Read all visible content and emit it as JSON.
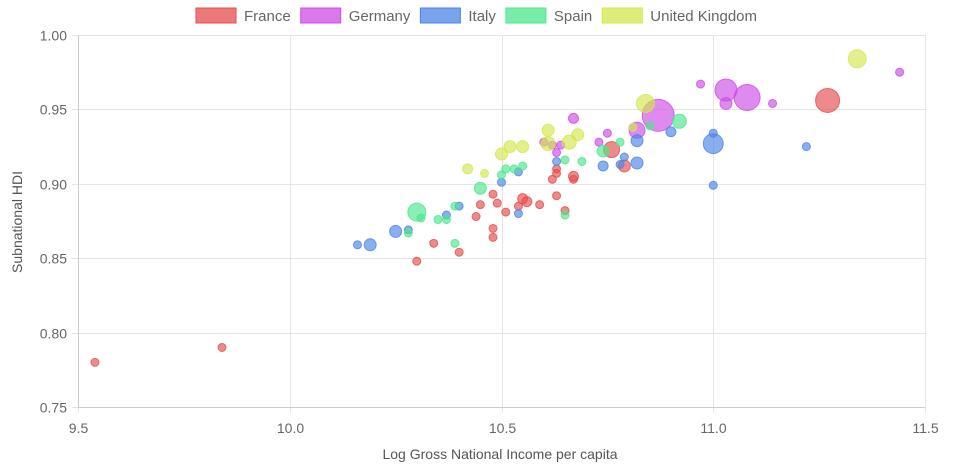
{
  "chart_data": {
    "type": "scatter",
    "variant": "bubble",
    "title": "",
    "xlabel": "Log Gross National Income per capita",
    "ylabel": "Subnational HDI",
    "xlim": [
      9.5,
      11.5
    ],
    "ylim": [
      0.75,
      1.0
    ],
    "xticks": [
      "9.5",
      "10.0",
      "10.5",
      "11.0",
      "11.5"
    ],
    "yticks": [
      "0.75",
      "0.80",
      "0.85",
      "0.90",
      "0.95",
      "1.00"
    ],
    "grid": true,
    "legend_position": "top",
    "series": [
      {
        "name": "France",
        "color": "#e64c4c",
        "points": [
          {
            "x": 9.54,
            "y": 0.78,
            "r": 4
          },
          {
            "x": 9.84,
            "y": 0.79,
            "r": 4
          },
          {
            "x": 10.3,
            "y": 0.848,
            "r": 4
          },
          {
            "x": 10.34,
            "y": 0.86,
            "r": 4
          },
          {
            "x": 10.4,
            "y": 0.854,
            "r": 4
          },
          {
            "x": 10.44,
            "y": 0.878,
            "r": 4
          },
          {
            "x": 10.45,
            "y": 0.886,
            "r": 4
          },
          {
            "x": 10.48,
            "y": 0.87,
            "r": 4
          },
          {
            "x": 10.48,
            "y": 0.864,
            "r": 4
          },
          {
            "x": 10.48,
            "y": 0.893,
            "r": 4
          },
          {
            "x": 10.49,
            "y": 0.887,
            "r": 4
          },
          {
            "x": 10.51,
            "y": 0.881,
            "r": 4
          },
          {
            "x": 10.54,
            "y": 0.885,
            "r": 4
          },
          {
            "x": 10.55,
            "y": 0.89,
            "r": 5
          },
          {
            "x": 10.56,
            "y": 0.888,
            "r": 5
          },
          {
            "x": 10.59,
            "y": 0.886,
            "r": 4
          },
          {
            "x": 10.62,
            "y": 0.903,
            "r": 4
          },
          {
            "x": 10.63,
            "y": 0.892,
            "r": 4
          },
          {
            "x": 10.63,
            "y": 0.91,
            "r": 4
          },
          {
            "x": 10.63,
            "y": 0.907,
            "r": 4
          },
          {
            "x": 10.65,
            "y": 0.882,
            "r": 4
          },
          {
            "x": 10.67,
            "y": 0.905,
            "r": 5
          },
          {
            "x": 10.67,
            "y": 0.903,
            "r": 4
          },
          {
            "x": 10.76,
            "y": 0.923,
            "r": 8
          },
          {
            "x": 10.79,
            "y": 0.912,
            "r": 6
          },
          {
            "x": 11.27,
            "y": 0.956,
            "r": 12
          }
        ]
      },
      {
        "name": "Germany",
        "color": "#cc4ce6",
        "points": [
          {
            "x": 10.6,
            "y": 0.928,
            "r": 4
          },
          {
            "x": 10.62,
            "y": 0.926,
            "r": 4
          },
          {
            "x": 10.63,
            "y": 0.921,
            "r": 4
          },
          {
            "x": 10.64,
            "y": 0.926,
            "r": 4
          },
          {
            "x": 10.67,
            "y": 0.944,
            "r": 5
          },
          {
            "x": 10.73,
            "y": 0.928,
            "r": 4
          },
          {
            "x": 10.75,
            "y": 0.934,
            "r": 4
          },
          {
            "x": 10.82,
            "y": 0.936,
            "r": 8
          },
          {
            "x": 10.87,
            "y": 0.946,
            "r": 16
          },
          {
            "x": 10.97,
            "y": 0.967,
            "r": 4
          },
          {
            "x": 11.03,
            "y": 0.954,
            "r": 6
          },
          {
            "x": 11.03,
            "y": 0.963,
            "r": 11
          },
          {
            "x": 11.08,
            "y": 0.958,
            "r": 13
          },
          {
            "x": 11.14,
            "y": 0.954,
            "r": 4
          },
          {
            "x": 11.44,
            "y": 0.975,
            "r": 4
          }
        ]
      },
      {
        "name": "Italy",
        "color": "#4c84e6",
        "points": [
          {
            "x": 10.16,
            "y": 0.859,
            "r": 4
          },
          {
            "x": 10.19,
            "y": 0.859,
            "r": 6
          },
          {
            "x": 10.25,
            "y": 0.868,
            "r": 6
          },
          {
            "x": 10.28,
            "y": 0.869,
            "r": 4
          },
          {
            "x": 10.37,
            "y": 0.879,
            "r": 4
          },
          {
            "x": 10.4,
            "y": 0.885,
            "r": 4
          },
          {
            "x": 10.5,
            "y": 0.901,
            "r": 4
          },
          {
            "x": 10.54,
            "y": 0.88,
            "r": 4
          },
          {
            "x": 10.54,
            "y": 0.908,
            "r": 4
          },
          {
            "x": 10.63,
            "y": 0.915,
            "r": 4
          },
          {
            "x": 10.74,
            "y": 0.912,
            "r": 5
          },
          {
            "x": 10.78,
            "y": 0.913,
            "r": 4
          },
          {
            "x": 10.79,
            "y": 0.918,
            "r": 4
          },
          {
            "x": 10.82,
            "y": 0.914,
            "r": 6
          },
          {
            "x": 10.82,
            "y": 0.929,
            "r": 6
          },
          {
            "x": 10.9,
            "y": 0.935,
            "r": 5
          },
          {
            "x": 11.0,
            "y": 0.899,
            "r": 4
          },
          {
            "x": 11.0,
            "y": 0.934,
            "r": 4
          },
          {
            "x": 11.0,
            "y": 0.927,
            "r": 10
          },
          {
            "x": 11.22,
            "y": 0.925,
            "r": 4
          }
        ]
      },
      {
        "name": "Spain",
        "color": "#4ce68c",
        "points": [
          {
            "x": 10.28,
            "y": 0.867,
            "r": 4
          },
          {
            "x": 10.3,
            "y": 0.881,
            "r": 9
          },
          {
            "x": 10.31,
            "y": 0.877,
            "r": 4
          },
          {
            "x": 10.35,
            "y": 0.876,
            "r": 4
          },
          {
            "x": 10.37,
            "y": 0.876,
            "r": 4
          },
          {
            "x": 10.39,
            "y": 0.86,
            "r": 4
          },
          {
            "x": 10.39,
            "y": 0.885,
            "r": 4
          },
          {
            "x": 10.45,
            "y": 0.897,
            "r": 6
          },
          {
            "x": 10.5,
            "y": 0.906,
            "r": 4
          },
          {
            "x": 10.51,
            "y": 0.91,
            "r": 4
          },
          {
            "x": 10.53,
            "y": 0.91,
            "r": 4
          },
          {
            "x": 10.55,
            "y": 0.912,
            "r": 4
          },
          {
            "x": 10.65,
            "y": 0.879,
            "r": 4
          },
          {
            "x": 10.65,
            "y": 0.916,
            "r": 4
          },
          {
            "x": 10.69,
            "y": 0.915,
            "r": 4
          },
          {
            "x": 10.74,
            "y": 0.922,
            "r": 6
          },
          {
            "x": 10.78,
            "y": 0.928,
            "r": 4
          },
          {
            "x": 10.85,
            "y": 0.939,
            "r": 4
          },
          {
            "x": 10.92,
            "y": 0.942,
            "r": 7
          }
        ]
      },
      {
        "name": "United Kingdom",
        "color": "#d4e64c",
        "points": [
          {
            "x": 10.42,
            "y": 0.91,
            "r": 5
          },
          {
            "x": 10.46,
            "y": 0.907,
            "r": 4
          },
          {
            "x": 10.5,
            "y": 0.92,
            "r": 6
          },
          {
            "x": 10.52,
            "y": 0.925,
            "r": 6
          },
          {
            "x": 10.55,
            "y": 0.925,
            "r": 6
          },
          {
            "x": 10.61,
            "y": 0.927,
            "r": 7
          },
          {
            "x": 10.61,
            "y": 0.936,
            "r": 6
          },
          {
            "x": 10.66,
            "y": 0.928,
            "r": 7
          },
          {
            "x": 10.68,
            "y": 0.933,
            "r": 6
          },
          {
            "x": 10.81,
            "y": 0.938,
            "r": 4
          },
          {
            "x": 10.84,
            "y": 0.954,
            "r": 9
          },
          {
            "x": 11.34,
            "y": 0.984,
            "r": 9
          }
        ]
      }
    ]
  }
}
